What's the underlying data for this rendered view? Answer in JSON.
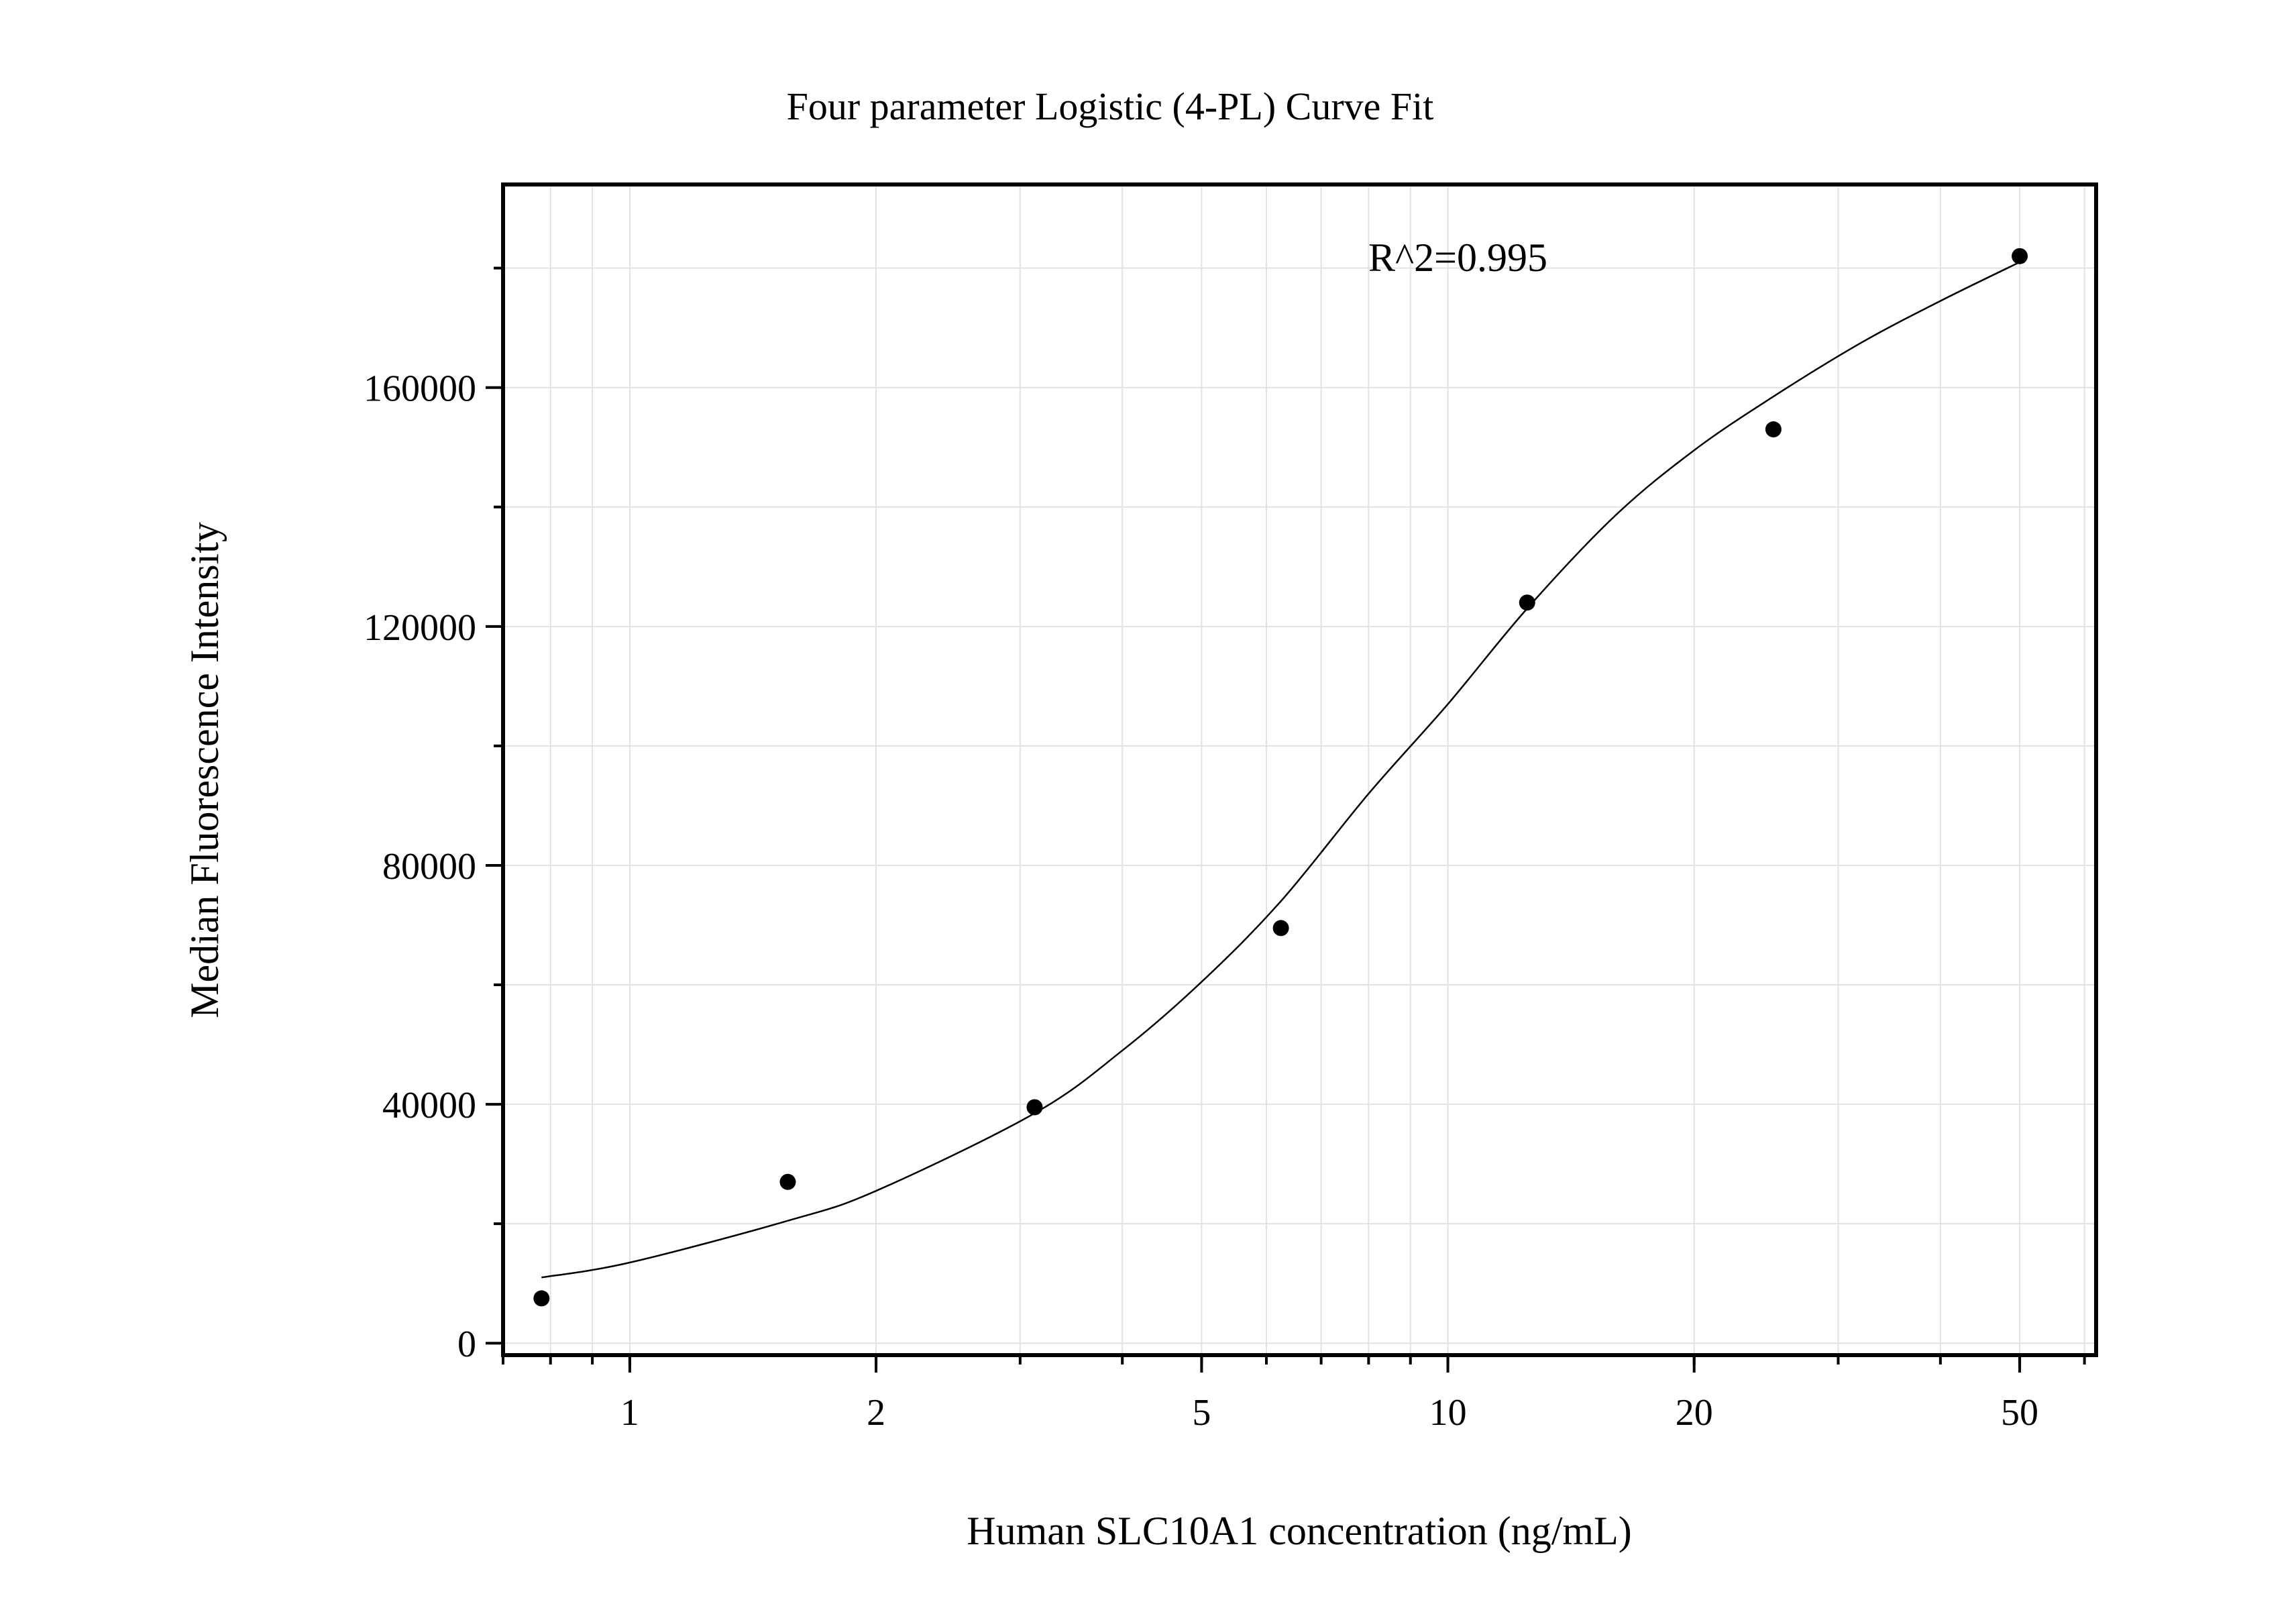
{
  "chart_data": {
    "type": "scatter",
    "title": "Four parameter Logistic (4-PL) Curve Fit",
    "xlabel": "Human SLC10A1 concentration (ng/mL)",
    "ylabel": "Median Fluorescence Intensity",
    "x_scale": "log",
    "xlim": [
      0.7,
      62
    ],
    "ylim": [
      -2000,
      194000
    ],
    "x_ticks": [
      1,
      2,
      5,
      10,
      20,
      50
    ],
    "x_tick_labels": [
      "1",
      "2",
      "5",
      "10",
      "20",
      "50"
    ],
    "y_ticks": [
      0,
      40000,
      80000,
      120000,
      160000
    ],
    "y_tick_labels": [
      "0",
      "40000",
      "80000",
      "120000",
      "160000"
    ],
    "grid": true,
    "annotation": "R^2=0.995",
    "series": [
      {
        "type": "scatter",
        "x": [
          0.78,
          1.56,
          3.125,
          6.25,
          12.5,
          25,
          50
        ],
        "y": [
          7500,
          27000,
          39500,
          69500,
          124000,
          153000,
          182000
        ]
      },
      {
        "type": "line",
        "fit": "4PL",
        "x": [
          0.78,
          1.0,
          1.56,
          2.0,
          3.125,
          4.0,
          5.0,
          6.25,
          8.0,
          10.0,
          12.5,
          16.0,
          20.0,
          25.0,
          32.0,
          40.0,
          50.0
        ],
        "y": [
          11000,
          13500,
          20500,
          25500,
          38500,
          49000,
          60500,
          74000,
          92000,
          107000,
          123000,
          138500,
          149500,
          158500,
          167500,
          174500,
          181000
        ]
      }
    ]
  }
}
